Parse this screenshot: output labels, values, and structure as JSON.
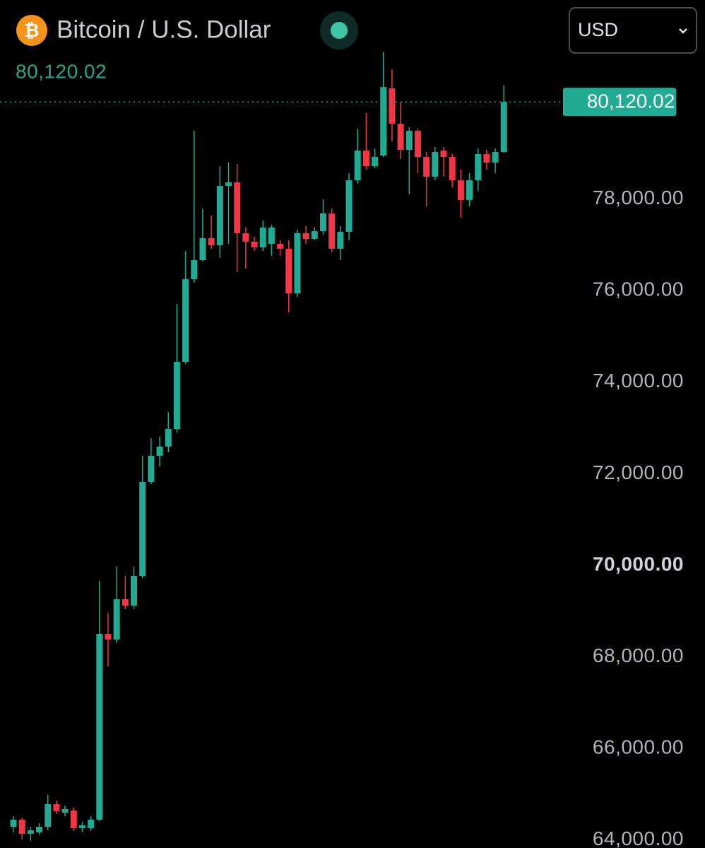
{
  "chart_data": {
    "type": "candlestick",
    "symbol_icon": "₿",
    "title": "Bitcoin / U.S. Dollar",
    "price_label": "80,120.02",
    "last_price": 80120.02,
    "currency": "USD",
    "up_color": "#22ab94",
    "down_color": "#f23645",
    "ylim": [
      63827,
      82346
    ],
    "yticks": [
      {
        "value": 64000,
        "label": "64,000.00"
      },
      {
        "value": 66000,
        "label": "66,000.00"
      },
      {
        "value": 68000,
        "label": "68,000.00"
      },
      {
        "value": 70000,
        "label": "70,000.00"
      },
      {
        "value": 72000,
        "label": "72,000.00"
      },
      {
        "value": 74000,
        "label": "74,000.00"
      },
      {
        "value": 76000,
        "label": "76,000.00"
      },
      {
        "value": 78000,
        "label": "78,000.00"
      }
    ],
    "open": [
      64290,
      64445,
      64137,
      64170,
      64290,
      64785,
      64600,
      64646,
      64260,
      64260,
      64445,
      68503,
      68380,
      69259,
      69120,
      69769,
      71821,
      72392,
      72592,
      72978,
      74444,
      76249,
      76666,
      77144,
      76990,
      78286,
      78363,
      77252,
      77067,
      76944,
      77021,
      77021,
      76913,
      75940,
      77252,
      77128,
      77298,
      77684,
      76913,
      77283,
      78409,
      79057,
      78718,
      78950,
      80415,
      79644,
      79073,
      79489,
      78919,
      78487,
      79057,
      78919,
      78409,
      77977,
      78409,
      78981,
      78795,
      79027
    ],
    "high": [
      64520,
      64490,
      64290,
      64370,
      64985,
      64862,
      64754,
      64708,
      64400,
      64520,
      69660,
      68951,
      69969,
      69769,
      69969,
      72392,
      72777,
      72808,
      73348,
      75709,
      76866,
      79489,
      77792,
      77638,
      78718,
      78795,
      78764,
      77376,
      77175,
      77530,
      77437,
      77098,
      77098,
      77329,
      77406,
      77376,
      77993,
      77792,
      77406,
      78564,
      79536,
      79875,
      79104,
      81218,
      80832,
      80106,
      79567,
      79536,
      79027,
      79135,
      79135,
      78981,
      78641,
      78564,
      79104,
      79073,
      79104,
      80493
    ],
    "low": [
      64170,
      64013,
      63982,
      64110,
      64214,
      64570,
      64520,
      64200,
      64170,
      64200,
      64414,
      67793,
      68303,
      69043,
      69043,
      69722,
      71775,
      72160,
      72469,
      72901,
      74398,
      76172,
      76635,
      76913,
      76712,
      77021,
      76403,
      76480,
      76866,
      76866,
      76758,
      76758,
      75524,
      75863,
      77021,
      77098,
      77221,
      76835,
      76666,
      77098,
      78332,
      78641,
      78672,
      78919,
      79258,
      78873,
      78101,
      78564,
      77838,
      78409,
      78487,
      78255,
      77592,
      77838,
      78178,
      78641,
      78564,
      79011
    ],
    "close": [
      64445,
      64137,
      64214,
      64290,
      64785,
      64630,
      64677,
      64260,
      64322,
      64445,
      68503,
      68380,
      69259,
      69120,
      69769,
      71821,
      72392,
      72592,
      72978,
      74444,
      76249,
      76666,
      77144,
      76990,
      78286,
      78363,
      77252,
      77067,
      76944,
      77376,
      77376,
      76913,
      75940,
      77252,
      77128,
      77298,
      77684,
      76913,
      77283,
      78409,
      79057,
      78718,
      78919,
      80446,
      79644,
      79073,
      79489,
      78919,
      78487,
      79027,
      78919,
      78409,
      77977,
      78409,
      78981,
      78795,
      79027,
      80120.02
    ]
  }
}
